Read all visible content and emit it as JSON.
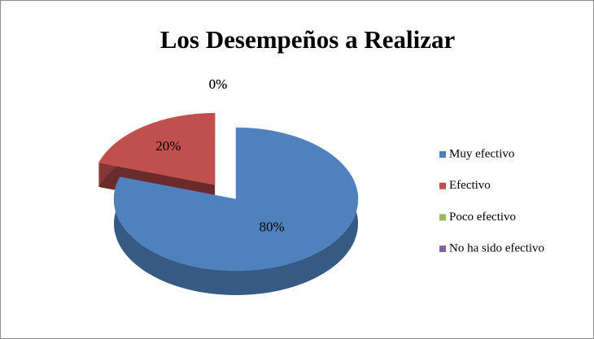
{
  "chart_data": {
    "type": "pie",
    "title": "Los Desempeños a Realizar",
    "categories": [
      "Muy efectivo",
      "Efectivo",
      "Poco efectivo",
      "No ha sido efectivo"
    ],
    "values": [
      80,
      20,
      0,
      0
    ],
    "value_labels": [
      "80%",
      "20%",
      "0%",
      "0%"
    ],
    "colors": [
      "#4f81bd",
      "#c0504d",
      "#9bbb59",
      "#8064a2"
    ],
    "legend": "right"
  }
}
